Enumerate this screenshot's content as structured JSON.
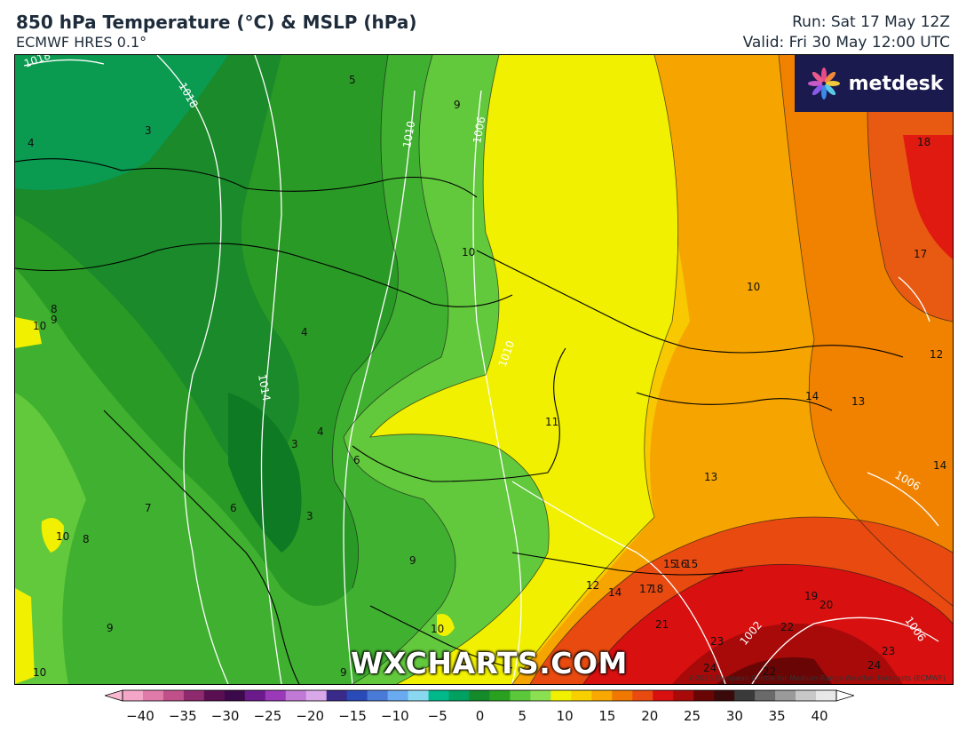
{
  "header": {
    "title": "850 hPa Temperature (°C) & MSLP (hPa)",
    "model": "ECMWF HRES 0.1°",
    "run": "Run: Sat 17 May 12Z",
    "valid": "Valid: Fri 30 May 12:00 UTC"
  },
  "brand": {
    "logo": "metdesk",
    "watermark": "WXCHARTS.COM",
    "copyright": "©2025 European Centre for Medium-Range Weather Forecasts (ECMWF)"
  },
  "legend": {
    "ticks": [
      "−40",
      "−35",
      "−30",
      "−25",
      "−20",
      "−15",
      "−10",
      "−5",
      "0",
      "5",
      "10",
      "15",
      "20",
      "25",
      "30",
      "35",
      "40"
    ],
    "colors": [
      "#f4a6c8",
      "#e07aa8",
      "#c0508a",
      "#8e2a6e",
      "#5a0f52",
      "#3c0a4a",
      "#6a1a8a",
      "#9a3ab8",
      "#c07ad6",
      "#d8a8e8",
      "#3a2a8a",
      "#2a4ab8",
      "#4a7ad8",
      "#6aaaf0",
      "#8ad8f0",
      "#00b88a",
      "#00a060",
      "#148a2a",
      "#2aa020",
      "#5ac83a",
      "#8ae050",
      "#f0f000",
      "#f8d000",
      "#f8a800",
      "#f07800",
      "#e84a10",
      "#d81010",
      "#a80a0a",
      "#6a0505",
      "#3a0a0a",
      "#3a3a3a",
      "#6a6a6a",
      "#9a9a9a",
      "#c8c8c8",
      "#e8e8e8"
    ]
  },
  "map": {
    "temp_labels": [
      "3",
      "4",
      "5",
      "9",
      "10",
      "8",
      "9",
      "10",
      "4",
      "3",
      "4",
      "6",
      "7",
      "6",
      "3",
      "10",
      "8",
      "9",
      "9",
      "10",
      "9",
      "10",
      "10",
      "11",
      "12",
      "13",
      "13",
      "14",
      "14",
      "12",
      "14",
      "15",
      "16",
      "17",
      "18",
      "17",
      "18",
      "19",
      "20",
      "21",
      "22",
      "23",
      "24",
      "22",
      "23",
      "24",
      "15"
    ],
    "isobar_labels": [
      "1018",
      "1018",
      "1010",
      "1006",
      "1014",
      "1010",
      "1006",
      "1002",
      "1006"
    ]
  }
}
